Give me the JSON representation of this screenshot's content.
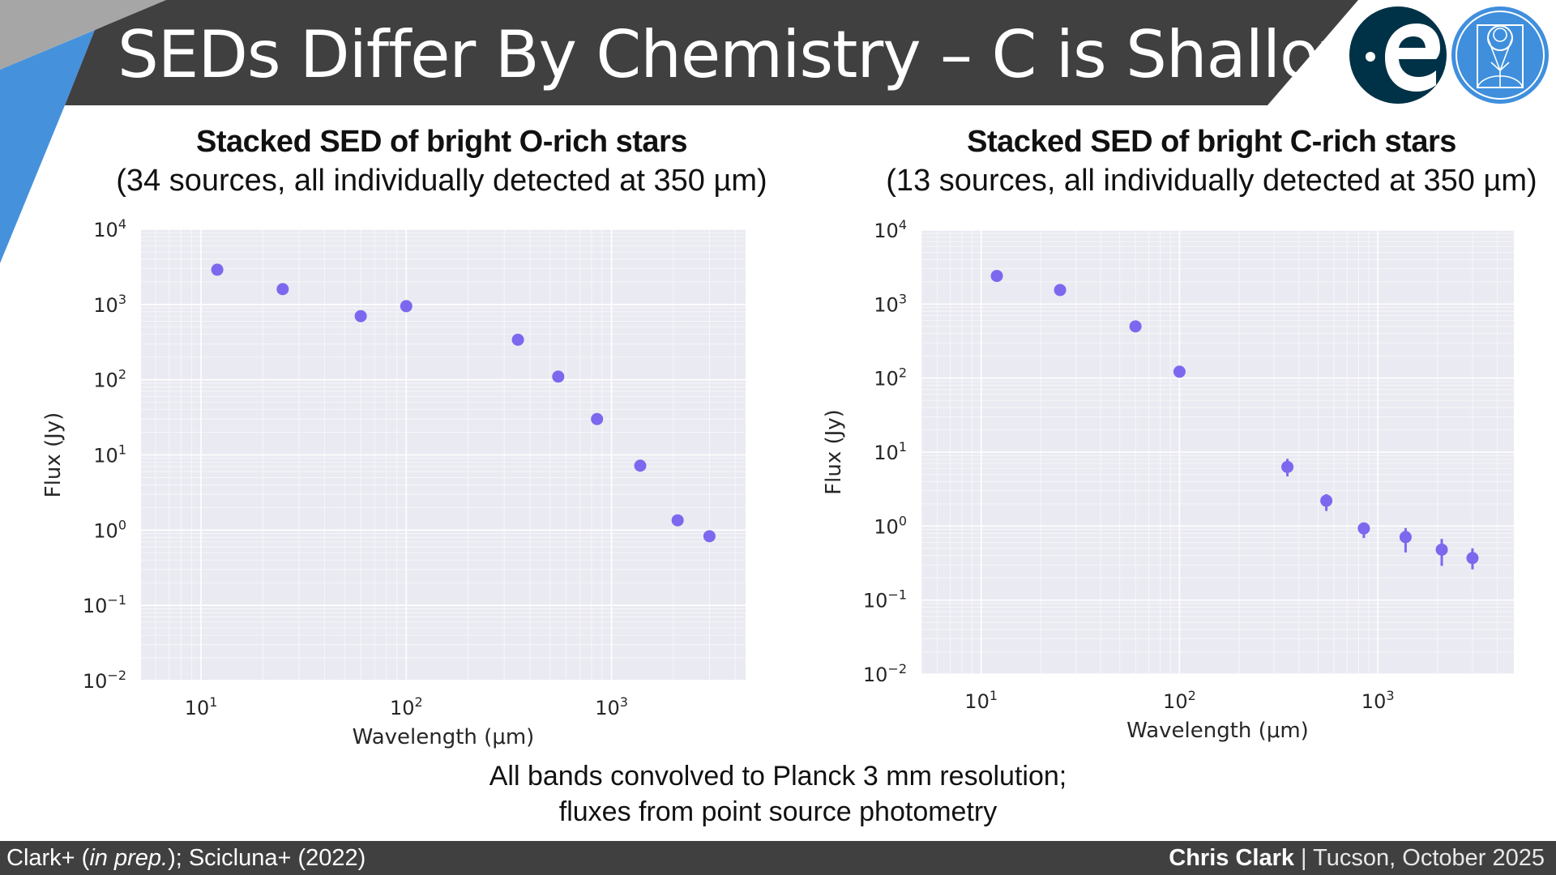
{
  "slide": {
    "title": "SEDs Differ By Chemistry – C is Shallow",
    "colors": {
      "title_bar": "#404040",
      "accent_blue": "#4691DC",
      "accent_gray": "#A6A6A6",
      "esa_logo": "#003247",
      "stsci_logo": "#3F8FDD",
      "marker": "#7B68EE",
      "plot_bg": "#EAEAF2"
    },
    "logos": {
      "left": "esa-logo",
      "right": "stsci-logo"
    },
    "caption_lines": [
      "All bands convolved to Planck 3 mm resolution;",
      "fluxes from point source photometry"
    ],
    "footer": {
      "reference_prefix": "Clark+ (",
      "reference_italic": "in prep.",
      "reference_suffix": "); Scicluna+ (2022)",
      "author": "Chris Clark",
      "separator": " | ",
      "venue": "Tucson, October 2025"
    }
  },
  "panels": [
    {
      "title": "Stacked SED of bright O-rich stars",
      "subtitle": "(34 sources, all individually detected at 350 µm)"
    },
    {
      "title": "Stacked SED of bright C-rich stars",
      "subtitle": "(13 sources, all individually detected at 350 µm)"
    }
  ],
  "chart_data": [
    {
      "type": "scatter",
      "title": "Stacked SED of bright O-rich stars",
      "subtitle": "(34 sources, all individually detected at 350 µm)",
      "xlabel": "Wavelength (μm)",
      "ylabel": "Flux (Jy)",
      "xscale": "log",
      "yscale": "log",
      "xlim": [
        5.1,
        4500
      ],
      "ylim": [
        0.01,
        10000
      ],
      "xticks": [
        {
          "v": 10,
          "base": "10",
          "exp": "1"
        },
        {
          "v": 100,
          "base": "10",
          "exp": "2"
        },
        {
          "v": 1000,
          "base": "10",
          "exp": "3"
        }
      ],
      "yticks": [
        {
          "v": 10000,
          "base": "10",
          "exp": "4"
        },
        {
          "v": 1000,
          "base": "10",
          "exp": "3"
        },
        {
          "v": 100,
          "base": "10",
          "exp": "2"
        },
        {
          "v": 10,
          "base": "10",
          "exp": "1"
        },
        {
          "v": 1,
          "base": "10",
          "exp": "0"
        },
        {
          "v": 0.1,
          "base": "10",
          "exp": "−1"
        },
        {
          "v": 0.01,
          "base": "10",
          "exp": "−2"
        }
      ],
      "grid": true,
      "x": [
        12,
        25,
        60,
        100,
        350,
        550,
        850,
        1380,
        2100,
        3000
      ],
      "y": [
        2900,
        1600,
        700,
        950,
        340,
        110,
        30,
        7.2,
        1.35,
        0.83
      ],
      "yerr_low": [
        null,
        null,
        null,
        null,
        null,
        null,
        null,
        null,
        null,
        null
      ],
      "yerr_high": [
        null,
        null,
        null,
        null,
        null,
        null,
        null,
        null,
        null,
        null
      ]
    },
    {
      "type": "scatter",
      "title": "Stacked SED of bright C-rich stars",
      "subtitle": "(13 sources, all individually detected at 350 µm)",
      "xlabel": "Wavelength (μm)",
      "ylabel": "Flux (Jy)",
      "xscale": "log",
      "yscale": "log",
      "xlim": [
        5.0,
        4850
      ],
      "ylim": [
        0.01,
        10000
      ],
      "xticks": [
        {
          "v": 10,
          "base": "10",
          "exp": "1"
        },
        {
          "v": 100,
          "base": "10",
          "exp": "2"
        },
        {
          "v": 1000,
          "base": "10",
          "exp": "3"
        }
      ],
      "yticks": [
        {
          "v": 10000,
          "base": "10",
          "exp": "4"
        },
        {
          "v": 1000,
          "base": "10",
          "exp": "3"
        },
        {
          "v": 100,
          "base": "10",
          "exp": "2"
        },
        {
          "v": 10,
          "base": "10",
          "exp": "1"
        },
        {
          "v": 1,
          "base": "10",
          "exp": "0"
        },
        {
          "v": 0.1,
          "base": "10",
          "exp": "−1"
        },
        {
          "v": 0.01,
          "base": "10",
          "exp": "−2"
        }
      ],
      "grid": true,
      "x": [
        12,
        25,
        60,
        100,
        350,
        550,
        850,
        1380,
        2100,
        3000
      ],
      "y": [
        2400,
        1550,
        500,
        122,
        6.3,
        2.2,
        0.93,
        0.71,
        0.48,
        0.37
      ],
      "yerr_low": [
        null,
        null,
        null,
        null,
        4.7,
        1.6,
        0.69,
        0.44,
        0.29,
        0.26
      ],
      "yerr_high": [
        null,
        null,
        null,
        null,
        8.1,
        2.7,
        1.08,
        0.94,
        0.67,
        0.5
      ]
    }
  ]
}
